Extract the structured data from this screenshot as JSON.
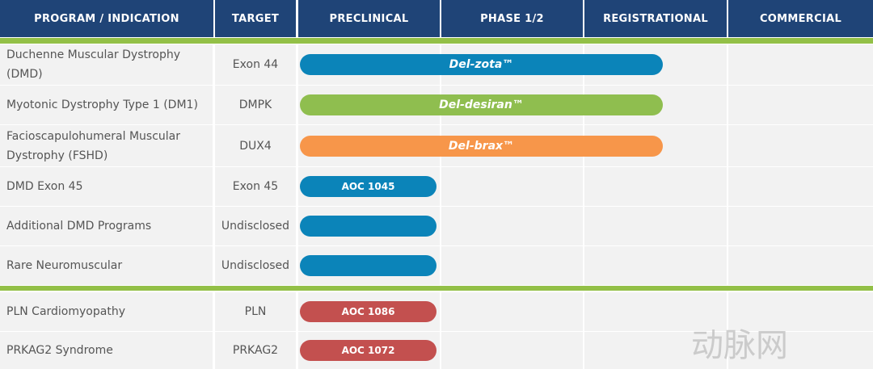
{
  "header": {
    "columns": [
      "PROGRAM / INDICATION",
      "TARGET",
      "PRECLINICAL",
      "PHASE 1/2",
      "REGISTRATIONAL",
      "COMMERCIAL"
    ]
  },
  "colors": {
    "blue": "#0b84b9",
    "green": "#8fbe4f",
    "orange": "#f7964a",
    "red": "#c3504f"
  },
  "rows": [
    {
      "program": "Duchenne Muscular Dystrophy (DMD)",
      "target": "Exon 44",
      "bar": "Del-zota™"
    },
    {
      "program": "Myotonic Dystrophy Type 1 (DM1)",
      "target": "DMPK",
      "bar": "Del-desiran™"
    },
    {
      "program": "Facioscapulohumeral Muscular Dystrophy (FSHD)",
      "target": "DUX4",
      "bar": "Del-brax™"
    },
    {
      "program": "DMD Exon 45",
      "target": "Exon 45",
      "bar": "AOC 1045"
    },
    {
      "program": "Additional DMD Programs",
      "target": "Undisclosed"
    },
    {
      "program": "Rare Neuromuscular",
      "target": "Undisclosed"
    },
    {
      "program": "PLN Cardiomyopathy",
      "target": "PLN",
      "bar": "AOC 1086"
    },
    {
      "program": "PRKAG2 Syndrome",
      "target": "PRKAG2",
      "bar": "AOC 1072"
    }
  ],
  "watermark": "动脉网"
}
